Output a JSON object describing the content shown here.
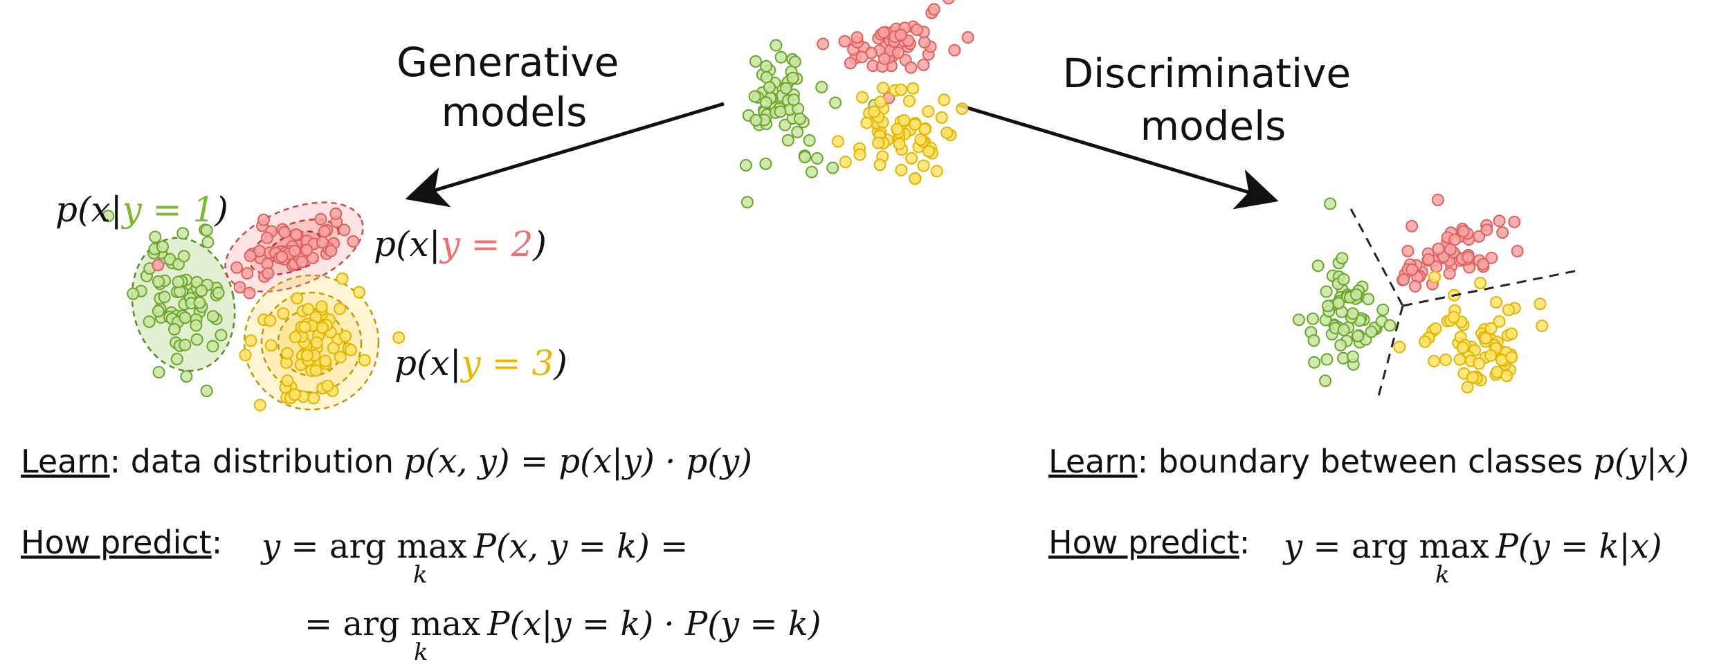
{
  "headings": {
    "generative": [
      "Generative",
      "models"
    ],
    "discriminative": [
      "Discriminative",
      "models"
    ]
  },
  "class_labels": {
    "p_open": "p(x|",
    "close": ")",
    "class1": "y = 1",
    "class2": "y = 2",
    "class3": "y = 3"
  },
  "generative": {
    "learn_label": "Learn",
    "learn_text": ": data distribution ",
    "learn_formula": "p(x, y) = p(x|y) · p(y)",
    "predict_label": "How predict",
    "predict_colon": ":",
    "predict_lhs": "y = ",
    "argmax": "arg max",
    "argmax_sub": "k",
    "predict_rhs1": "P(x, y = k) =",
    "predict_cont": "= ",
    "predict_rhs2": "P(x|y = k) · P(y = k)"
  },
  "discriminative": {
    "learn_label": "Learn",
    "learn_text": ": boundary between classes ",
    "learn_formula": "p(y|x)",
    "predict_label": "How predict",
    "predict_colon": ":",
    "predict_lhs": "y = ",
    "argmax": "arg max",
    "argmax_sub": "k",
    "predict_rhs": "P(y = k|x)"
  },
  "colors": {
    "green": "#7cb82f",
    "red": "#ef6f6c",
    "yellow": "#e8b800",
    "text": "#111111"
  }
}
